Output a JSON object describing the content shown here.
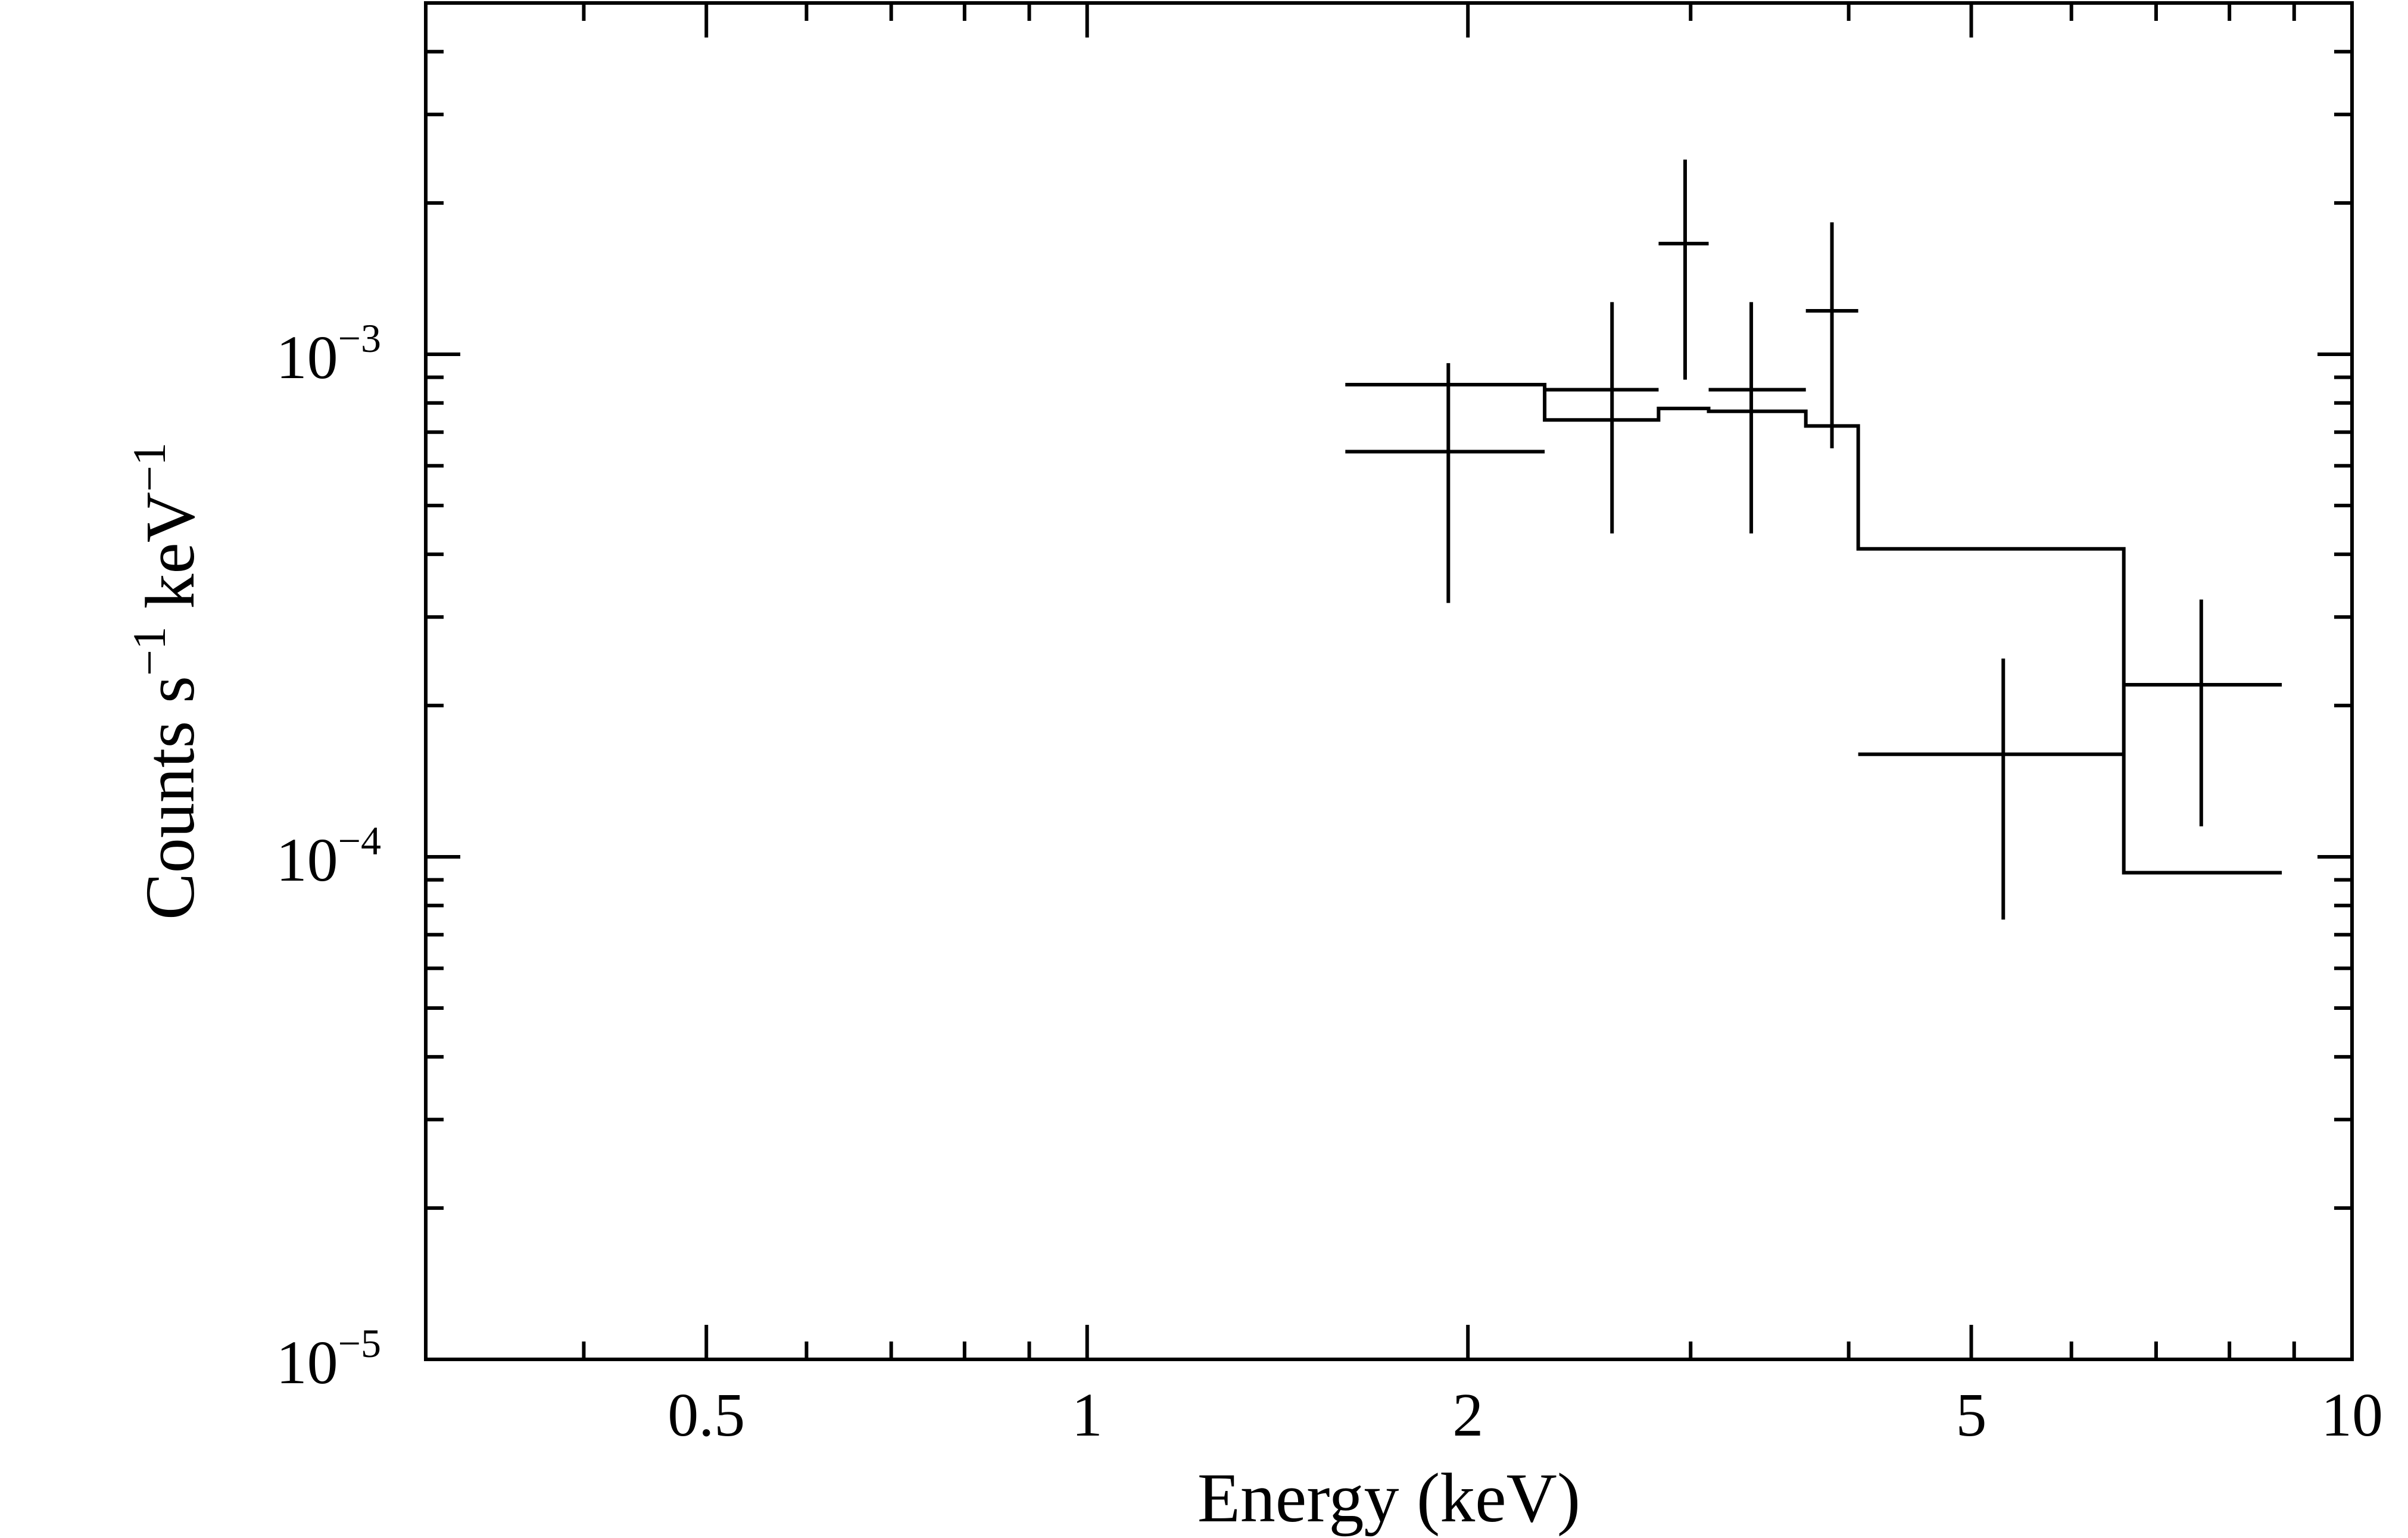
{
  "chart_data": {
    "type": "scatter",
    "title": "",
    "xlabel": "Energy (keV)",
    "ylabel": {
      "base": "Counts s",
      "exp1": "−1",
      "mid": " keV",
      "exp2": "−1"
    },
    "xscale": "log",
    "yscale": "log",
    "xlim": [
      0.3,
      10
    ],
    "ylim": [
      1e-05,
      0.005
    ],
    "grid": false,
    "legend": "none",
    "x_ticks": [
      {
        "value": 0.5,
        "label": "0.5"
      },
      {
        "value": 1,
        "label": "1"
      },
      {
        "value": 2,
        "label": "2"
      },
      {
        "value": 5,
        "label": "5"
      },
      {
        "value": 10,
        "label": "10"
      }
    ],
    "y_ticks": [
      {
        "value": 1e-05,
        "base": "10",
        "exp": "−5"
      },
      {
        "value": 0.0001,
        "base": "10",
        "exp": "−4"
      },
      {
        "value": 0.001,
        "base": "10",
        "exp": "−3"
      }
    ],
    "series": [
      {
        "kind": "data-with-errorbars",
        "points": [
          {
            "xlo": 1.6,
            "xhi": 2.3,
            "x": 1.93,
            "y": 0.00064,
            "ylo": 0.00032,
            "yhi": 0.00096
          },
          {
            "xlo": 2.3,
            "xhi": 2.83,
            "x": 2.6,
            "y": 0.00085,
            "ylo": 0.00044,
            "yhi": 0.00127
          },
          {
            "xlo": 2.83,
            "xhi": 3.1,
            "x": 2.97,
            "y": 0.00166,
            "ylo": 0.00089,
            "yhi": 0.00244
          },
          {
            "xlo": 3.1,
            "xhi": 3.7,
            "x": 3.35,
            "y": 0.00085,
            "ylo": 0.00044,
            "yhi": 0.00127
          },
          {
            "xlo": 3.7,
            "xhi": 4.07,
            "x": 3.88,
            "y": 0.00122,
            "ylo": 0.00065,
            "yhi": 0.00183
          },
          {
            "xlo": 4.07,
            "xhi": 6.6,
            "x": 5.3,
            "y": 0.00016,
            "ylo": 7.5e-05,
            "yhi": 0.000248
          },
          {
            "xlo": 6.6,
            "xhi": 8.8,
            "x": 7.6,
            "y": 0.00022,
            "ylo": 0.000115,
            "yhi": 0.000325
          }
        ]
      },
      {
        "kind": "model-step",
        "bins": [
          {
            "xlo": 1.6,
            "xhi": 2.3,
            "y": 0.00087
          },
          {
            "xlo": 2.3,
            "xhi": 2.83,
            "y": 0.00074
          },
          {
            "xlo": 2.83,
            "xhi": 3.1,
            "y": 0.00078
          },
          {
            "xlo": 3.1,
            "xhi": 3.7,
            "y": 0.00077
          },
          {
            "xlo": 3.7,
            "xhi": 4.07,
            "y": 0.00072
          },
          {
            "xlo": 4.07,
            "xhi": 6.6,
            "y": 0.00041
          },
          {
            "xlo": 6.6,
            "xhi": 8.8,
            "y": 9.3e-05
          }
        ]
      }
    ]
  }
}
